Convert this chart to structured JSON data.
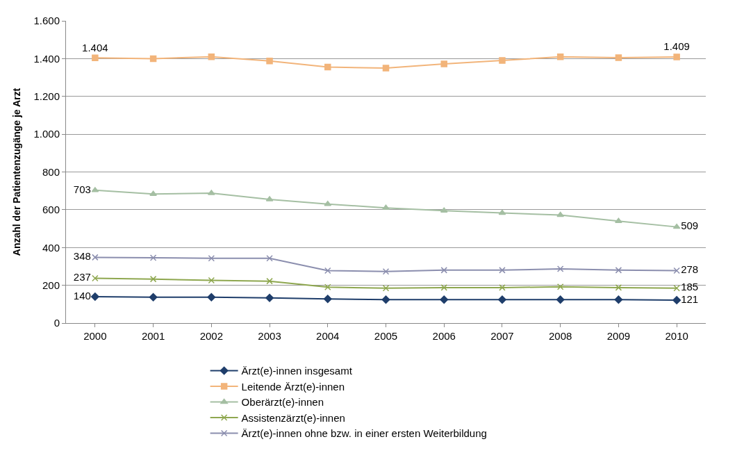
{
  "chart_data": {
    "type": "line",
    "ylabel": "Anzahl der Patientenzugänge je Arzt",
    "categories": [
      "2000",
      "2001",
      "2002",
      "2003",
      "2004",
      "2005",
      "2006",
      "2007",
      "2008",
      "2009",
      "2010"
    ],
    "series": [
      {
        "name": "Ärzt(e)-innen insgesamt",
        "color": "#1f3e6b",
        "marker": "diamond",
        "values": [
          140,
          137,
          137,
          133,
          128,
          124,
          124,
          124,
          124,
          124,
          121
        ],
        "value_labels": [
          "140",
          null,
          null,
          null,
          null,
          null,
          null,
          null,
          null,
          null,
          "121"
        ]
      },
      {
        "name": "Leitende Ärzt(e)-innen",
        "color": "#f2b47a",
        "marker": "square",
        "values": [
          1404,
          1400,
          1410,
          1388,
          1355,
          1350,
          1372,
          1390,
          1410,
          1405,
          1409
        ],
        "value_labels": [
          "1.404",
          null,
          null,
          null,
          null,
          null,
          null,
          null,
          null,
          null,
          "1.409"
        ]
      },
      {
        "name": "Oberärzt(e)-innen",
        "color": "#a5bfa3",
        "marker": "triangle",
        "values": [
          703,
          683,
          688,
          655,
          630,
          610,
          595,
          583,
          572,
          540,
          509
        ],
        "value_labels": [
          "703",
          null,
          null,
          null,
          null,
          null,
          null,
          null,
          null,
          null,
          "509"
        ]
      },
      {
        "name": "Assistenzärzt(e)-innen",
        "color": "#8ea74f",
        "marker": "cross",
        "values": [
          237,
          233,
          226,
          222,
          190,
          185,
          188,
          188,
          192,
          188,
          185
        ],
        "value_labels": [
          "237",
          null,
          null,
          null,
          null,
          null,
          null,
          null,
          null,
          null,
          "185"
        ]
      },
      {
        "name": "Ärzt(e)-innen ohne bzw. in einer ersten Weiterbildung",
        "color": "#8b8eae",
        "marker": "cross",
        "values": [
          348,
          346,
          343,
          343,
          278,
          273,
          280,
          280,
          287,
          280,
          278
        ],
        "value_labels": [
          "348",
          null,
          null,
          null,
          null,
          null,
          null,
          null,
          null,
          null,
          "278"
        ]
      }
    ],
    "ylim": [
      0,
      1600
    ],
    "yticks": [
      0,
      200,
      400,
      600,
      800,
      {
        "value": 1000,
        "label": "1.000"
      },
      {
        "value": 1200,
        "label": "1.200"
      },
      {
        "value": 1400,
        "label": "1.400"
      },
      {
        "value": 1600,
        "label": "1.600"
      }
    ],
    "grid": "y",
    "legend": "bottom",
    "line_style": "solid"
  }
}
